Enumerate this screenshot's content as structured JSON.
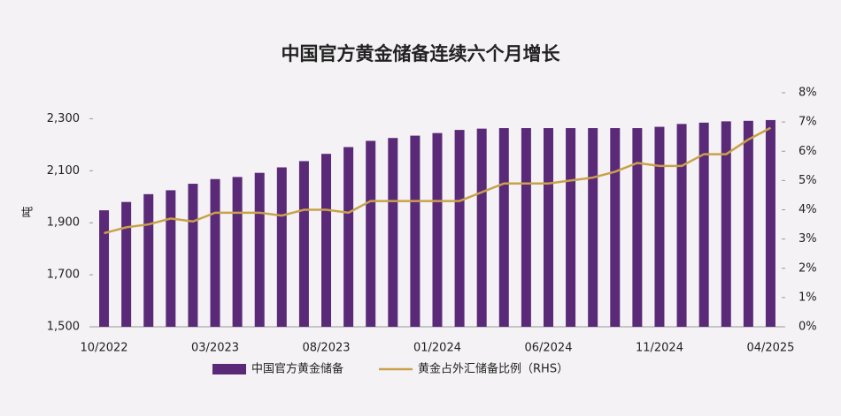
{
  "chart_data": {
    "type": "bar",
    "title": "中国官方黄金储备连续六个月增长",
    "ylabel": "吨",
    "categories": [
      "10/2022",
      null,
      null,
      null,
      null,
      "03/2023",
      null,
      null,
      null,
      null,
      "08/2023",
      null,
      null,
      null,
      null,
      "01/2024",
      null,
      null,
      null,
      null,
      "06/2024",
      null,
      null,
      null,
      null,
      "11/2024",
      null,
      null,
      null,
      null,
      "04/2025"
    ],
    "series": [
      {
        "name": "中国官方黄金储备",
        "type": "bar",
        "color": "#5a2a78",
        "values": [
          1948,
          1980,
          2010,
          2025,
          2050,
          2068,
          2076,
          2092,
          2113,
          2137,
          2165,
          2191,
          2215,
          2226,
          2235,
          2245,
          2257,
          2262,
          2264,
          2264,
          2264,
          2264,
          2264,
          2264,
          2264,
          2269,
          2280,
          2285,
          2290,
          2292,
          2295
        ]
      },
      {
        "name": "黄金占外汇储备比例（RHS）",
        "type": "line",
        "axis": "y2",
        "color": "#c9a14a",
        "values": [
          3.2,
          3.4,
          3.5,
          3.7,
          3.6,
          3.9,
          3.9,
          3.9,
          3.8,
          4.0,
          4.0,
          3.9,
          4.3,
          4.3,
          4.3,
          4.3,
          4.3,
          4.6,
          4.9,
          4.9,
          4.9,
          5.0,
          5.1,
          5.3,
          5.6,
          5.5,
          5.5,
          5.9,
          5.9,
          6.4,
          6.8
        ]
      }
    ],
    "ylim": [
      1500,
      2400
    ],
    "yticks": [
      {
        "value": 1500,
        "label": "1,500"
      },
      {
        "value": 1700,
        "label": "1,700"
      },
      {
        "value": 1900,
        "label": "1,900"
      },
      {
        "value": 2100,
        "label": "2,100"
      },
      {
        "value": 2300,
        "label": "2,300"
      }
    ],
    "y2lim": [
      0,
      8
    ],
    "y2ticks": [
      {
        "value": 0,
        "label": "0%"
      },
      {
        "value": 1,
        "label": "1%"
      },
      {
        "value": 2,
        "label": "2%"
      },
      {
        "value": 3,
        "label": "3%"
      },
      {
        "value": 4,
        "label": "4%"
      },
      {
        "value": 5,
        "label": "5%"
      },
      {
        "value": 6,
        "label": "6%"
      },
      {
        "value": 7,
        "label": "7%"
      },
      {
        "value": 8,
        "label": "8%"
      }
    ],
    "legend": "bottom"
  }
}
